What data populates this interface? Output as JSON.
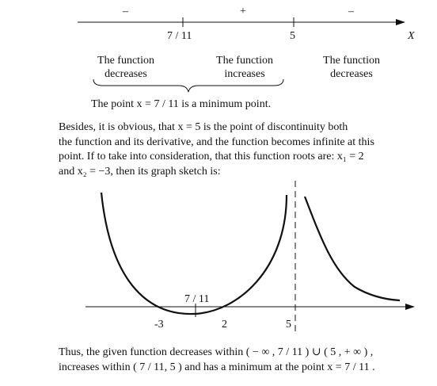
{
  "sign_line": {
    "signs": [
      "–",
      "+",
      "–"
    ],
    "ticks": [
      "7 / 11",
      "5"
    ],
    "axis_label": "X",
    "intervals": [
      {
        "line1": "The function",
        "line2": "decreases"
      },
      {
        "line1": "The function",
        "line2": "increases"
      },
      {
        "line1": "The function",
        "line2": "decreases"
      }
    ]
  },
  "minimum_sentence": "The point  x = 7 / 11 is a minimum point.",
  "paragraph": [
    "Besides, it is obvious, that  x = 5  is the point of discontinuity both",
    "the function and its derivative, and the function becomes infinite at this",
    "point. If to take into consideration, that this function roots are:  x₁ = 2",
    "and  x₂ = −3,  then its graph sketch is:"
  ],
  "graph": {
    "labels": {
      "min_label": "7 / 11",
      "root_left": "-3",
      "root_right": "2",
      "asymptote": "5"
    }
  },
  "conclusion": [
    "Thus, the given function decreases within ( − ∞ ,  7 / 11 ) ∪ ( 5 , + ∞ ) ,",
    "increases within ( 7 / 11,  5 ) and has a minimum at the point  x = 7 / 11 ."
  ]
}
